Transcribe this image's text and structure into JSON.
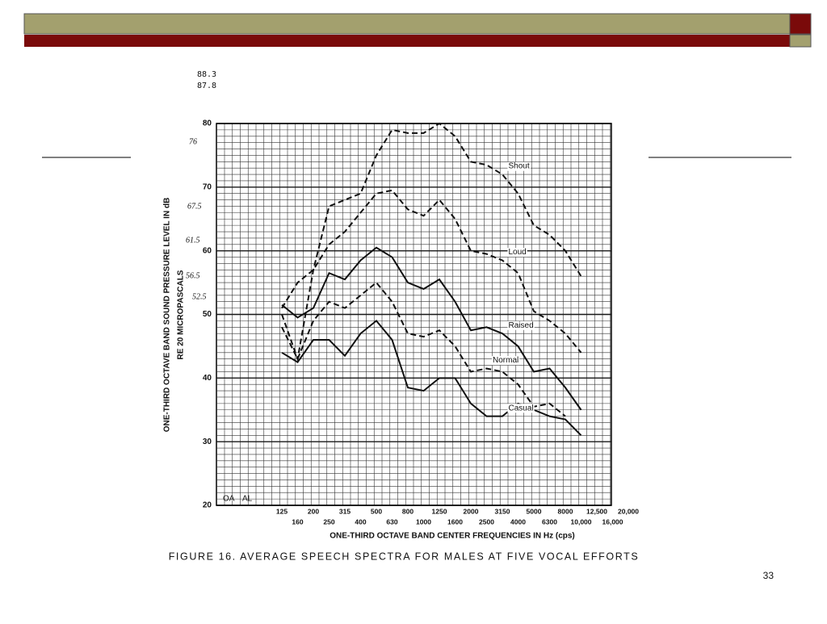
{
  "page_number": "33",
  "chart_data": {
    "type": "line",
    "title": "FIGURE 16. AVERAGE SPEECH SPECTRA FOR MALES AT FIVE VOCAL EFFORTS",
    "x_label": "ONE-THIRD OCTAVE BAND CENTER FREQUENCIES IN Hz (cps)",
    "y_label": [
      "ONE-THIRD OCTAVE BAND SOUND PRESSURE LEVEL IN dB",
      "RE 20 MICROPASCALS"
    ],
    "annotations": [
      "88.3",
      "87.8",
      "OA",
      "AL",
      "76",
      "67.5",
      "61.5",
      "56.5",
      "52.5"
    ],
    "categories": [
      "125",
      "160",
      "200",
      "250",
      "315",
      "400",
      "500",
      "630",
      "800",
      "1000",
      "1250",
      "1600",
      "2000",
      "2500",
      "3150",
      "4000",
      "5000",
      "6300",
      "8000",
      "10,000",
      "12,500",
      "16,000",
      "20,000"
    ],
    "ylim": [
      20,
      80
    ],
    "yticks": [
      20,
      30,
      40,
      50,
      60,
      70,
      80
    ],
    "grid": true,
    "series": [
      {
        "name": "Shout",
        "color": "#111111",
        "dashed": true,
        "values": [
          50,
          43,
          57,
          67,
          68,
          69,
          75,
          79,
          78.5,
          78.5,
          80,
          78,
          74,
          73.5,
          72,
          69,
          64,
          62.5,
          60,
          56,
          null,
          null,
          null
        ]
      },
      {
        "name": "Loud",
        "color": "#111111",
        "dashed": true,
        "values": [
          51,
          55,
          57,
          61,
          63,
          66,
          69,
          69.5,
          66.5,
          65.5,
          68,
          65,
          60,
          59.5,
          58.5,
          56.5,
          50.5,
          49,
          47,
          44,
          null,
          null,
          null
        ]
      },
      {
        "name": "Raised",
        "color": "#111111",
        "dashed": false,
        "values": [
          51.5,
          49.5,
          51,
          56.5,
          55.5,
          58.5,
          60.5,
          59,
          55,
          54,
          55.5,
          52,
          47.5,
          48,
          47,
          45,
          41,
          41.5,
          38.5,
          35,
          null,
          null,
          null
        ]
      },
      {
        "name": "Normal",
        "color": "#111111",
        "dashed": true,
        "values": [
          48,
          43,
          49,
          52,
          51,
          53,
          55,
          52,
          47,
          46.5,
          47.5,
          45,
          41,
          41.5,
          41,
          39,
          35.5,
          36,
          34,
          null,
          null,
          null,
          null
        ]
      },
      {
        "name": "Casual",
        "color": "#111111",
        "dashed": false,
        "values": [
          44,
          42.5,
          46,
          46,
          43.5,
          47,
          49,
          46,
          38.5,
          38,
          40,
          40,
          36,
          34,
          34,
          36,
          35,
          34,
          33.5,
          31,
          null,
          null,
          null
        ]
      }
    ]
  }
}
